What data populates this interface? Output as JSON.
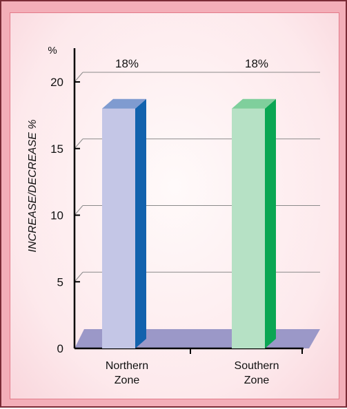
{
  "chart_data": {
    "type": "bar",
    "ylabel": "INCREASE/DECREASE %",
    "unit_label": "%",
    "ylim": [
      0,
      20
    ],
    "yticks": [
      0,
      5,
      10,
      15,
      20
    ],
    "categories": [
      [
        "Northern",
        "Zone"
      ],
      [
        "Southern",
        "Zone"
      ]
    ],
    "values": [
      18,
      18
    ],
    "data_labels": [
      "18%",
      "18%"
    ],
    "grid": true,
    "three_d": true,
    "colors": {
      "bar_front": [
        "#c4c6e6",
        "#b6e1c5"
      ],
      "bar_side": [
        "#1262ad",
        "#0aa653"
      ],
      "bar_top": [
        "#7f9bd0",
        "#7fcf9c"
      ],
      "floor": "#9b98c8",
      "grid": "#8a8a8a"
    }
  }
}
